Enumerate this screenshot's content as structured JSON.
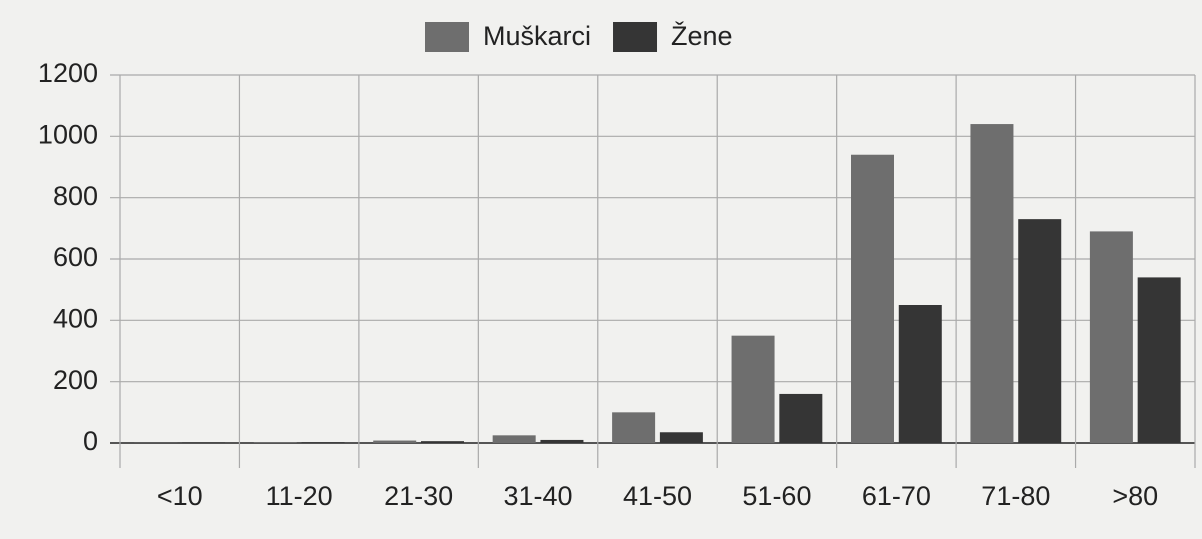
{
  "chart_data": {
    "type": "bar",
    "categories": [
      "<10",
      "11-20",
      "21-30",
      "31-40",
      "41-50",
      "51-60",
      "61-70",
      "71-80",
      ">80"
    ],
    "series": [
      {
        "name": "Muškarci",
        "color": "#6e6e6e",
        "values": [
          1,
          3,
          8,
          25,
          100,
          350,
          940,
          1040,
          690
        ]
      },
      {
        "name": "Žene",
        "color": "#353535",
        "values": [
          1,
          2,
          6,
          10,
          35,
          160,
          450,
          730,
          540
        ]
      }
    ],
    "ylim": [
      0,
      1200
    ],
    "yticks": [
      0,
      200,
      400,
      600,
      800,
      1000,
      1200
    ],
    "grid": true,
    "legend": "top"
  }
}
